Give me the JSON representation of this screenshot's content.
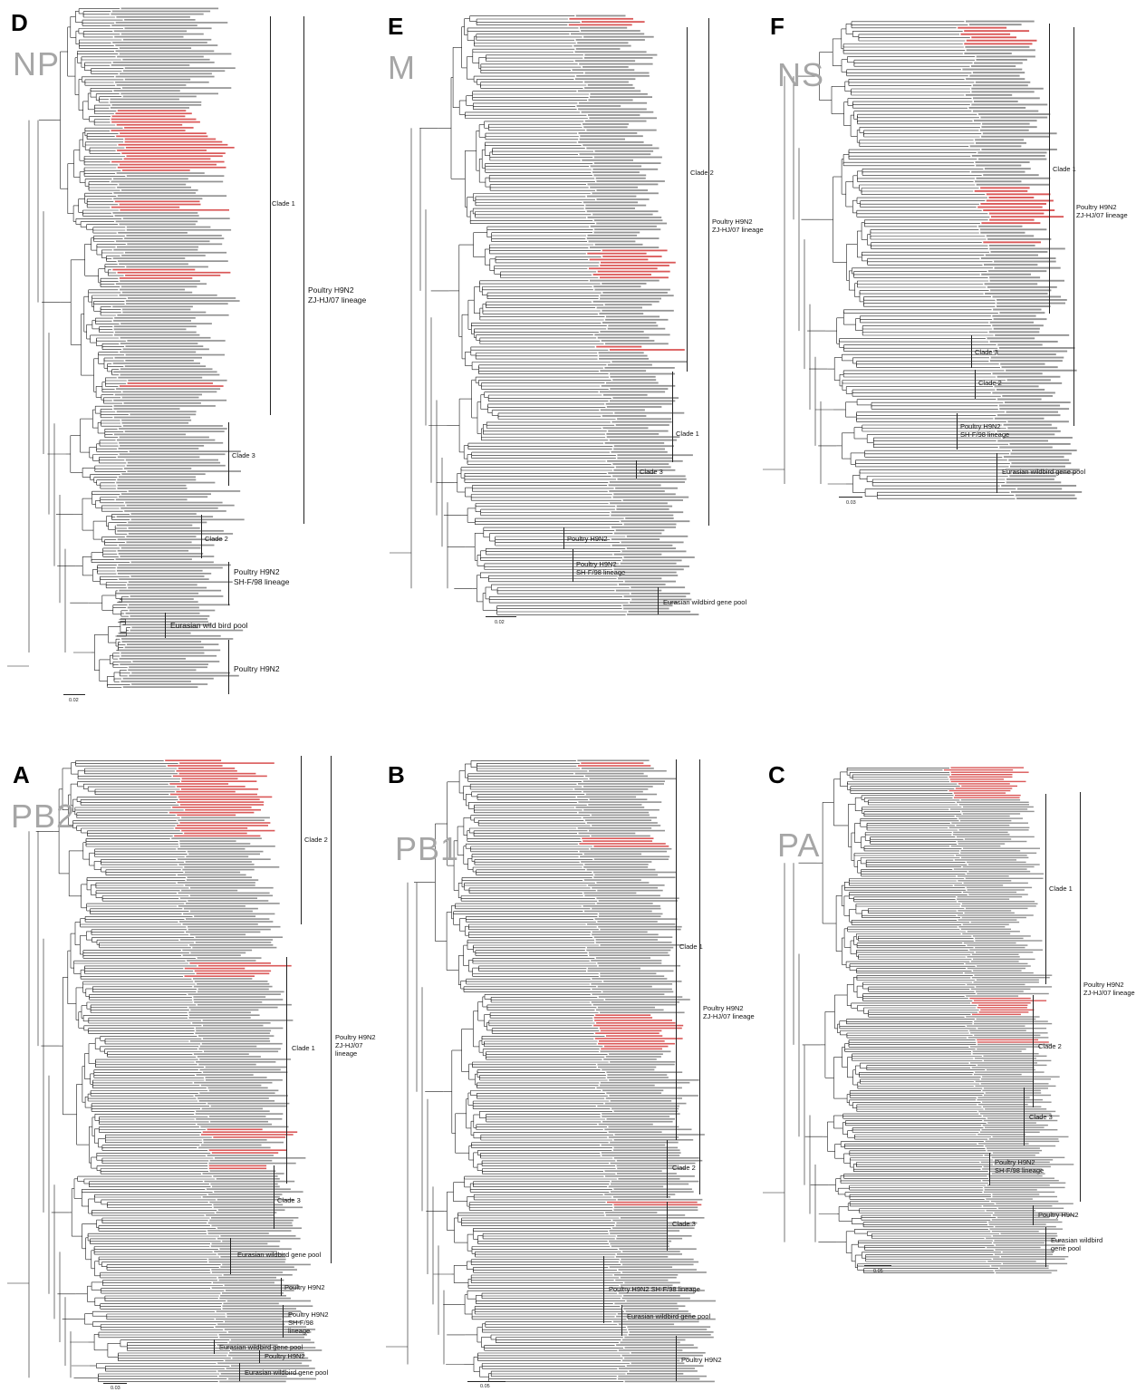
{
  "colors": {
    "branch": "#1a1a1a",
    "tip_text": "#3a3a3a",
    "highlight": "#d33b3b",
    "gene_label": "#a6a6a6"
  },
  "panels": [
    {
      "id": "D",
      "gene": "NP",
      "scale": "0.02",
      "clades": [
        {
          "label": "Clade 1"
        },
        {
          "label": "Poultry H9N2\nZJ-HJ/07 lineage"
        },
        {
          "label": "Clade 3"
        },
        {
          "label": "Clade 2"
        },
        {
          "label": "Poultry H9N2\nSH-F/98 lineage"
        },
        {
          "label": "Eurasian wild bird pool"
        },
        {
          "label": "Poultry H9N2"
        }
      ],
      "tips": 240
    },
    {
      "id": "E",
      "gene": "M",
      "scale": "0.02",
      "clades": [
        {
          "label": "Clade 2"
        },
        {
          "label": "Poultry H9N2\nZJ-HJ/07 lineage"
        },
        {
          "label": "Clade 1"
        },
        {
          "label": "Clade 3"
        },
        {
          "label": "Poultry H9N2"
        },
        {
          "label": "Poultry H9N2\nSH-F/98 lineage"
        },
        {
          "label": "Eurasian wildbird gene pool"
        }
      ],
      "tips": 200
    },
    {
      "id": "F",
      "gene": "NS",
      "scale": "0.03",
      "clades": [
        {
          "label": "Clade 1"
        },
        {
          "label": "Poultry H9N2\nZJ-HJ/07 lineage"
        },
        {
          "label": "Clade 3"
        },
        {
          "label": "Clade 2"
        },
        {
          "label": "Poultry H9N2\nSH-F/98 lineage"
        },
        {
          "label": "Eurasian wildbird gene pool"
        }
      ],
      "tips": 150
    },
    {
      "id": "A",
      "gene": "PB2",
      "scale": "0.03",
      "clades": [
        {
          "label": "Clade 2"
        },
        {
          "label": "Clade 1"
        },
        {
          "label": "Poultry H9N2\nZJ-HJ/07\nlineage"
        },
        {
          "label": "Clade 3"
        },
        {
          "label": "Eurasian wildbird gene pool"
        },
        {
          "label": "Poultry H9N2"
        },
        {
          "label": "Poultry H9N2\nSH-F/98\nlineage"
        },
        {
          "label": "Eurasian wildbird gene pool"
        },
        {
          "label": "Poultry H9N2"
        },
        {
          "label": "Eurasian wildbird gene pool"
        }
      ],
      "tips": 240
    },
    {
      "id": "B",
      "gene": "PB1",
      "scale": "0.05",
      "clades": [
        {
          "label": "Clade 1"
        },
        {
          "label": "Poultry H9N2\nZJ-HJ/07 lineage"
        },
        {
          "label": "Clade 2"
        },
        {
          "label": "Clade 3"
        },
        {
          "label": "Poultry H9N2 SH-F/98 lineage"
        },
        {
          "label": "Eurasian wildbird gene pool"
        },
        {
          "label": "Poultry H9N2"
        }
      ],
      "tips": 240
    },
    {
      "id": "C",
      "gene": "PA",
      "scale": "0.05",
      "clades": [
        {
          "label": "Clade 1"
        },
        {
          "label": "Poultry H9N2\nZJ-HJ/07 lineage"
        },
        {
          "label": "Clade 2"
        },
        {
          "label": "Clade 3"
        },
        {
          "label": "Poultry H9N2\nSH-F/98 lineage"
        },
        {
          "label": "Poultry H9N2"
        },
        {
          "label": "Eurasian wildbird\ngene pool"
        }
      ],
      "tips": 220
    }
  ]
}
